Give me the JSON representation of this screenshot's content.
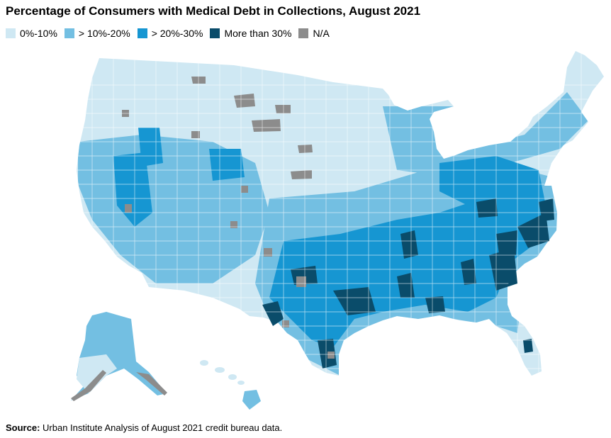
{
  "title": "Percentage of Consumers with Medical Debt in Collections, August 2021",
  "legend": [
    {
      "label": "0%-10%",
      "color": "#cfe8f3"
    },
    {
      "label": "> 10%-20%",
      "color": "#73bfe2"
    },
    {
      "label": "> 20%-30%",
      "color": "#1696d2"
    },
    {
      "label": "More than 30%",
      "color": "#0a4c6a"
    },
    {
      "label": "N/A",
      "color": "#8c8c8c"
    }
  ],
  "source": {
    "prefix": "Source:",
    "text": " Urban Institute Analysis of August 2021 credit bureau data."
  }
}
